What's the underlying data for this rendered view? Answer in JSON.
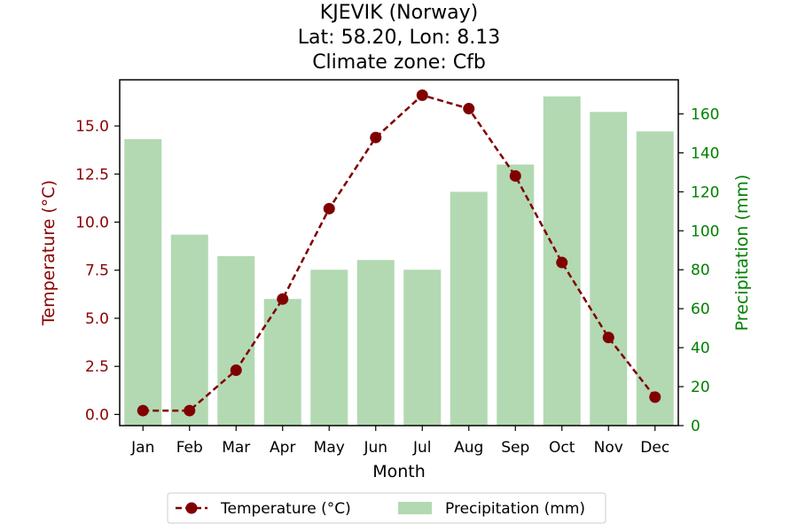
{
  "chart_data": {
    "type": "bar",
    "title_lines": [
      "KJEVIK (Norway)",
      "Lat: 58.20, Lon: 8.13",
      "Climate zone: Cfb"
    ],
    "xlabel": "Month",
    "ylabel_left": "Temperature (°C)",
    "ylabel_right": "Precipitation (mm)",
    "categories": [
      "Jan",
      "Feb",
      "Mar",
      "Apr",
      "May",
      "Jun",
      "Jul",
      "Aug",
      "Sep",
      "Oct",
      "Nov",
      "Dec"
    ],
    "series": [
      {
        "name": "Temperature (°C)",
        "type": "line",
        "axis": "left",
        "color": "#800000",
        "values": [
          0.2,
          0.2,
          2.3,
          6.0,
          10.7,
          14.4,
          16.6,
          15.9,
          12.4,
          7.9,
          4.0,
          0.9
        ]
      },
      {
        "name": "Precipitation (mm)",
        "type": "bar",
        "axis": "right",
        "color": "#b2d9b2",
        "values": [
          147,
          98,
          87,
          65,
          80,
          85,
          80,
          120,
          134,
          169,
          161,
          151
        ]
      }
    ],
    "ylim_left": [
      -0.58,
      17.4
    ],
    "yticks_left": [
      "0.0",
      "2.5",
      "5.0",
      "7.5",
      "10.0",
      "12.5",
      "15.0"
    ],
    "ylim_right": [
      0,
      177.5
    ],
    "yticks_right": [
      "0",
      "20",
      "40",
      "60",
      "80",
      "100",
      "120",
      "140",
      "160"
    ],
    "left_axis_color": "#8b0000",
    "right_axis_color": "#008000",
    "grid": false,
    "legend_placement": "bottom-center"
  }
}
